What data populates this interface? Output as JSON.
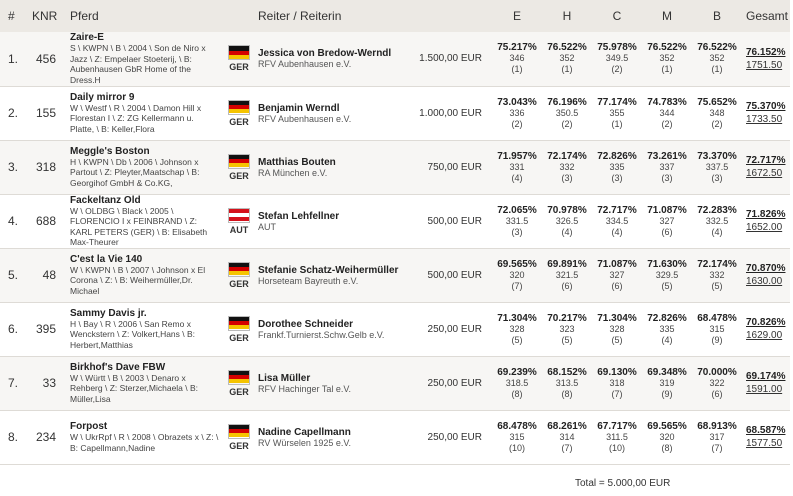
{
  "headers": {
    "rank": "#",
    "knr": "KNR",
    "horse": "Pferd",
    "rider": "Reiter / Reiterin",
    "j1": "E",
    "j2": "H",
    "j3": "C",
    "j4": "M",
    "j5": "B",
    "total": "Gesamt"
  },
  "rows": [
    {
      "rank": "1.",
      "knr": "456",
      "horse": "Zaire-E",
      "info": "S \\ KWPN \\ B \\ 2004 \\ Son de Niro x Jazz \\ Z: Empelaer Stoeterij, \\ B: Aubenhausen GbR Home of the Dress.H",
      "country": "GER",
      "flag": "ger",
      "rider": "Jessica von Bredow-Werndl",
      "club": "RFV Aubenhausen e.V.",
      "prize": "1.500,00 EUR",
      "scores": [
        {
          "pct": "75.217%",
          "pts": "346",
          "rank": "(1)"
        },
        {
          "pct": "76.522%",
          "pts": "352",
          "rank": "(1)"
        },
        {
          "pct": "75.978%",
          "pts": "349.5",
          "rank": "(2)"
        },
        {
          "pct": "76.522%",
          "pts": "352",
          "rank": "(1)"
        },
        {
          "pct": "76.522%",
          "pts": "352",
          "rank": "(1)"
        }
      ],
      "total_pct": "76.152%",
      "total_pts": "1751.50"
    },
    {
      "rank": "2.",
      "knr": "155",
      "horse": "Daily mirror 9",
      "info": "W \\ Westf \\ R \\ 2004 \\ Damon Hill x Florestan I \\ Z: ZG Kellermann u. Platte, \\ B: Keller,Flora",
      "country": "GER",
      "flag": "ger",
      "rider": "Benjamin Werndl",
      "club": "RFV Aubenhausen e.V.",
      "prize": "1.000,00 EUR",
      "scores": [
        {
          "pct": "73.043%",
          "pts": "336",
          "rank": "(2)"
        },
        {
          "pct": "76.196%",
          "pts": "350.5",
          "rank": "(2)"
        },
        {
          "pct": "77.174%",
          "pts": "355",
          "rank": "(1)"
        },
        {
          "pct": "74.783%",
          "pts": "344",
          "rank": "(2)"
        },
        {
          "pct": "75.652%",
          "pts": "348",
          "rank": "(2)"
        }
      ],
      "total_pct": "75.370%",
      "total_pts": "1733.50"
    },
    {
      "rank": "3.",
      "knr": "318",
      "horse": "Meggle's Boston",
      "info": "H \\ KWPN \\ Db \\ 2006 \\ Johnson x Partout \\ Z: Pleyter,Maatschap \\ B: Georgihof GmbH & Co.KG,",
      "country": "GER",
      "flag": "ger",
      "rider": "Matthias Bouten",
      "club": "RA München e.V.",
      "prize": "750,00 EUR",
      "scores": [
        {
          "pct": "71.957%",
          "pts": "331",
          "rank": "(4)"
        },
        {
          "pct": "72.174%",
          "pts": "332",
          "rank": "(3)"
        },
        {
          "pct": "72.826%",
          "pts": "335",
          "rank": "(3)"
        },
        {
          "pct": "73.261%",
          "pts": "337",
          "rank": "(3)"
        },
        {
          "pct": "73.370%",
          "pts": "337.5",
          "rank": "(3)"
        }
      ],
      "total_pct": "72.717%",
      "total_pts": "1672.50"
    },
    {
      "rank": "4.",
      "knr": "688",
      "horse": "Fackeltanz Old",
      "info": "W \\ OLDBG \\ Black \\ 2005 \\ FLORENCIO I x FEINBRAND \\ Z: KARL PETERS (GER) \\ B: Elisabeth Max-Theurer",
      "country": "AUT",
      "flag": "aut",
      "rider": "Stefan Lehfellner",
      "club": "AUT",
      "prize": "500,00 EUR",
      "scores": [
        {
          "pct": "72.065%",
          "pts": "331.5",
          "rank": "(3)"
        },
        {
          "pct": "70.978%",
          "pts": "326.5",
          "rank": "(4)"
        },
        {
          "pct": "72.717%",
          "pts": "334.5",
          "rank": "(4)"
        },
        {
          "pct": "71.087%",
          "pts": "327",
          "rank": "(6)"
        },
        {
          "pct": "72.283%",
          "pts": "332.5",
          "rank": "(4)"
        }
      ],
      "total_pct": "71.826%",
      "total_pts": "1652.00"
    },
    {
      "rank": "5.",
      "knr": "48",
      "horse": "C'est la Vie 140",
      "info": "W \\ KWPN \\ B \\ 2007 \\ Johnson x El Corona \\ Z: \\ B: Weihermüller,Dr. Michael",
      "country": "GER",
      "flag": "ger",
      "rider": "Stefanie Schatz-Weihermüller",
      "club": "Horseteam Bayreuth e.V.",
      "prize": "500,00 EUR",
      "scores": [
        {
          "pct": "69.565%",
          "pts": "320",
          "rank": "(7)"
        },
        {
          "pct": "69.891%",
          "pts": "321.5",
          "rank": "(6)"
        },
        {
          "pct": "71.087%",
          "pts": "327",
          "rank": "(6)"
        },
        {
          "pct": "71.630%",
          "pts": "329.5",
          "rank": "(5)"
        },
        {
          "pct": "72.174%",
          "pts": "332",
          "rank": "(5)"
        }
      ],
      "total_pct": "70.870%",
      "total_pts": "1630.00"
    },
    {
      "rank": "6.",
      "knr": "395",
      "horse": "Sammy Davis jr.",
      "info": "H \\ Bay \\ R \\ 2006 \\ San Remo x Wenckstern \\ Z: Volkert,Hans \\ B: Herbert,Matthias",
      "country": "GER",
      "flag": "ger",
      "rider": "Dorothee Schneider",
      "club": "Frankf.Turnierst.Schw.Gelb e.V.",
      "prize": "250,00 EUR",
      "scores": [
        {
          "pct": "71.304%",
          "pts": "328",
          "rank": "(5)"
        },
        {
          "pct": "70.217%",
          "pts": "323",
          "rank": "(5)"
        },
        {
          "pct": "71.304%",
          "pts": "328",
          "rank": "(5)"
        },
        {
          "pct": "72.826%",
          "pts": "335",
          "rank": "(4)"
        },
        {
          "pct": "68.478%",
          "pts": "315",
          "rank": "(9)"
        }
      ],
      "total_pct": "70.826%",
      "total_pts": "1629.00"
    },
    {
      "rank": "7.",
      "knr": "33",
      "horse": "Birkhof's Dave FBW",
      "info": "W \\ Württ \\ B \\ 2003 \\ Denaro x Rehberg \\ Z: Sterzer,Michaela \\ B: Müller,Lisa",
      "country": "GER",
      "flag": "ger",
      "rider": "Lisa Müller",
      "club": "RFV Hachinger Tal e.V.",
      "prize": "250,00 EUR",
      "scores": [
        {
          "pct": "69.239%",
          "pts": "318.5",
          "rank": "(8)"
        },
        {
          "pct": "68.152%",
          "pts": "313.5",
          "rank": "(8)"
        },
        {
          "pct": "69.130%",
          "pts": "318",
          "rank": "(7)"
        },
        {
          "pct": "69.348%",
          "pts": "319",
          "rank": "(9)"
        },
        {
          "pct": "70.000%",
          "pts": "322",
          "rank": "(6)"
        }
      ],
      "total_pct": "69.174%",
      "total_pts": "1591.00"
    },
    {
      "rank": "8.",
      "knr": "234",
      "horse": "Forpost",
      "info": "W \\ UkrRpf \\ R \\ 2008 \\ Obrazets x \\ Z: \\ B: Capellmann,Nadine",
      "country": "GER",
      "flag": "ger",
      "rider": "Nadine Capellmann",
      "club": "RV Würselen 1925 e.V.",
      "prize": "250,00 EUR",
      "scores": [
        {
          "pct": "68.478%",
          "pts": "315",
          "rank": "(10)"
        },
        {
          "pct": "68.261%",
          "pts": "314",
          "rank": "(7)"
        },
        {
          "pct": "67.717%",
          "pts": "311.5",
          "rank": "(10)"
        },
        {
          "pct": "69.565%",
          "pts": "320",
          "rank": "(8)"
        },
        {
          "pct": "68.913%",
          "pts": "317",
          "rank": "(7)"
        }
      ],
      "total_pct": "68.587%",
      "total_pts": "1577.50"
    }
  ],
  "footer": {
    "total": "Total = 5.000,00 EUR"
  }
}
